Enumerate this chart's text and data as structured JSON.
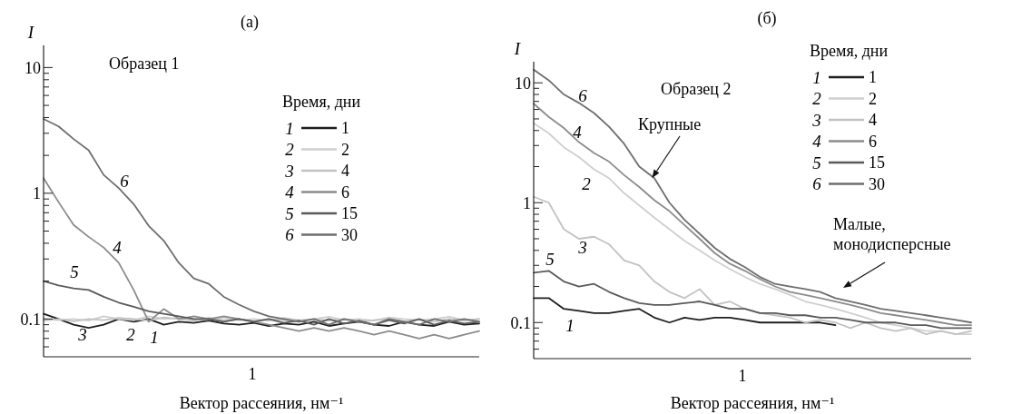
{
  "chart_data": [
    {
      "type": "line",
      "title": "(a)",
      "xlabel": "Вектор рассеяния, нм⁻¹",
      "ylabel": "I",
      "legend_title": "Время, дни",
      "log": "y",
      "legend": "top right",
      "ylim": [
        0.05,
        15
      ],
      "yticks": [
        {
          "value": 0.06,
          "label": null
        },
        {
          "value": 0.07,
          "label": null
        },
        {
          "value": 0.08,
          "label": null
        },
        {
          "value": 0.09,
          "label": null
        },
        {
          "value": 0.1,
          "label": "0.1"
        },
        {
          "value": 0.2,
          "label": null
        },
        {
          "value": 0.3,
          "label": null
        },
        {
          "value": 0.4,
          "label": null
        },
        {
          "value": 0.5,
          "label": null
        },
        {
          "value": 0.6,
          "label": null
        },
        {
          "value": 0.7,
          "label": null
        },
        {
          "value": 0.8,
          "label": null
        },
        {
          "value": 0.9,
          "label": null
        },
        {
          "value": 1,
          "label": "1"
        },
        {
          "value": 2,
          "label": null
        },
        {
          "value": 3,
          "label": null
        },
        {
          "value": 4,
          "label": null
        },
        {
          "value": 5,
          "label": null
        },
        {
          "value": 6,
          "label": null
        },
        {
          "value": 7,
          "label": null
        },
        {
          "value": 8,
          "label": null
        },
        {
          "value": 9,
          "label": null
        },
        {
          "value": 10,
          "label": "10"
        }
      ],
      "categories": [
        null,
        null,
        null,
        null,
        null,
        null,
        null,
        null,
        null,
        null,
        null,
        null,
        null,
        null,
        null,
        null,
        null,
        null,
        null,
        null,
        null,
        null,
        null,
        null,
        null,
        null,
        null,
        null,
        null,
        null
      ],
      "series": [
        {
          "name": "1",
          "color": "#1e1e1e",
          "values": [
            0.11,
            0.1,
            0.09,
            0.085,
            0.09,
            0.1,
            0.095,
            0.1,
            0.09,
            0.095,
            0.093,
            0.097,
            0.092,
            0.09,
            0.093,
            0.088,
            0.092,
            0.09,
            0.095,
            0.088,
            0.092,
            0.095,
            0.09,
            0.088,
            0.095,
            0.09,
            0.088,
            0.095,
            0.09,
            0.092
          ]
        },
        {
          "name": "2",
          "color": "#cfcfcf",
          "values": [
            0.1,
            0.098,
            0.1,
            0.097,
            0.105,
            0.1,
            0.098,
            0.105,
            0.1,
            0.102,
            0.098,
            0.1,
            0.103,
            0.098,
            0.1,
            0.097,
            0.102,
            0.098,
            0.1,
            0.104,
            0.098,
            0.1,
            0.097,
            0.103,
            0.1,
            0.098,
            0.1,
            0.104,
            0.098,
            0.1
          ]
        },
        {
          "name": "4",
          "color": "#c2c2c2",
          "values": [
            0.097,
            0.1,
            0.096,
            0.1,
            0.098,
            0.102,
            0.1,
            0.097,
            0.103,
            0.1,
            0.097,
            0.102,
            0.098,
            0.1,
            0.096,
            0.1,
            0.098,
            0.095,
            0.1,
            0.097,
            0.1,
            0.095,
            0.098,
            0.1,
            0.096,
            0.099,
            0.095,
            0.1,
            0.097,
            0.1
          ]
        },
        {
          "name": "6",
          "color": "#8c8c8c",
          "values": [
            1.32,
            0.85,
            0.56,
            0.45,
            0.37,
            0.28,
            0.17,
            0.095,
            0.12,
            0.1,
            0.105,
            0.1,
            0.105,
            0.1,
            0.095,
            0.09,
            0.085,
            0.08,
            0.085,
            0.08,
            0.085,
            0.08,
            0.075,
            0.08,
            0.075,
            0.07,
            0.075,
            0.07,
            0.075,
            0.08
          ]
        },
        {
          "name": "15",
          "color": "#5a5a5a",
          "values": [
            0.2,
            0.185,
            0.175,
            0.17,
            0.15,
            0.135,
            0.125,
            0.115,
            0.11,
            0.105,
            0.1,
            0.1,
            0.095,
            0.1,
            0.095,
            0.1,
            0.093,
            0.097,
            0.09,
            0.1,
            0.092,
            0.097,
            0.09,
            0.098,
            0.092,
            0.1,
            0.09,
            0.097,
            0.092,
            0.095
          ]
        },
        {
          "name": "30",
          "color": "#6e6e6e",
          "values": [
            3.9,
            3.4,
            2.7,
            2.2,
            1.4,
            1.1,
            0.82,
            0.55,
            0.42,
            0.28,
            0.21,
            0.19,
            0.15,
            0.13,
            0.115,
            0.105,
            0.1,
            0.095,
            0.1,
            0.09,
            0.1,
            0.095,
            0.09,
            0.1,
            0.095,
            0.09,
            0.1,
            0.095,
            0.1,
            0.095
          ]
        }
      ],
      "annotations": [
        "Образец 1",
        "1",
        "6",
        "4",
        "5",
        "3",
        "2",
        "1"
      ]
    },
    {
      "type": "line",
      "title": "(б)",
      "xlabel": "Вектор рассеяния, нм⁻¹",
      "ylabel": "I",
      "legend_title": "Время, дни",
      "log": "y",
      "legend": "top right",
      "ylim": [
        0.05,
        15
      ],
      "yticks": [
        {
          "value": 0.06,
          "label": null
        },
        {
          "value": 0.07,
          "label": null
        },
        {
          "value": 0.08,
          "label": null
        },
        {
          "value": 0.09,
          "label": null
        },
        {
          "value": 0.1,
          "label": "0.1"
        },
        {
          "value": 0.2,
          "label": null
        },
        {
          "value": 0.3,
          "label": null
        },
        {
          "value": 0.4,
          "label": null
        },
        {
          "value": 0.5,
          "label": null
        },
        {
          "value": 0.6,
          "label": null
        },
        {
          "value": 0.7,
          "label": null
        },
        {
          "value": 0.8,
          "label": null
        },
        {
          "value": 0.9,
          "label": null
        },
        {
          "value": 1,
          "label": "1"
        },
        {
          "value": 2,
          "label": null
        },
        {
          "value": 3,
          "label": null
        },
        {
          "value": 4,
          "label": null
        },
        {
          "value": 5,
          "label": null
        },
        {
          "value": 6,
          "label": null
        },
        {
          "value": 7,
          "label": null
        },
        {
          "value": 8,
          "label": null
        },
        {
          "value": 9,
          "label": null
        },
        {
          "value": 10,
          "label": "10"
        }
      ],
      "categories": [
        null,
        null,
        null,
        null,
        null,
        null,
        null,
        null,
        null,
        null,
        null,
        null,
        null,
        null,
        null,
        null,
        null,
        null,
        null,
        null,
        null,
        null,
        null,
        null,
        null,
        null,
        null,
        null,
        null,
        null
      ],
      "series": [
        {
          "name": "1",
          "color": "#1e1e1e",
          "values": [
            0.16,
            0.16,
            0.13,
            0.125,
            0.12,
            0.12,
            0.125,
            0.13,
            0.11,
            0.1,
            0.11,
            0.105,
            0.11,
            0.11,
            0.105,
            0.1,
            0.1,
            0.1,
            0.1,
            0.1,
            0.095,
            null,
            null,
            null,
            null,
            null,
            null,
            null,
            null,
            null
          ]
        },
        {
          "name": "2",
          "color": "#cfcfcf",
          "values": [
            4.6,
            3.8,
            2.9,
            2.4,
            1.9,
            1.6,
            1.2,
            0.95,
            0.75,
            0.6,
            0.48,
            0.4,
            0.33,
            0.28,
            0.24,
            0.21,
            0.19,
            0.17,
            0.15,
            0.14,
            0.13,
            0.12,
            0.11,
            0.1,
            0.095,
            0.09,
            0.085,
            0.085,
            0.08,
            0.08
          ]
        },
        {
          "name": "4",
          "color": "#c2c2c2",
          "values": [
            1.12,
            1.0,
            0.6,
            0.5,
            0.52,
            0.45,
            0.33,
            0.3,
            0.22,
            0.18,
            0.16,
            0.19,
            0.14,
            0.15,
            0.13,
            0.12,
            0.115,
            0.11,
            0.1,
            0.105,
            0.1,
            0.09,
            0.1,
            0.09,
            0.085,
            0.09,
            0.08,
            0.085,
            0.08,
            0.085
          ]
        },
        {
          "name": "6",
          "color": "#8c8c8c",
          "values": [
            6.7,
            5.2,
            4.2,
            3.2,
            2.6,
            2.2,
            1.7,
            1.35,
            1.05,
            0.85,
            0.65,
            0.5,
            0.38,
            0.31,
            0.27,
            0.23,
            0.2,
            0.18,
            0.17,
            0.16,
            0.15,
            0.14,
            0.13,
            0.12,
            0.115,
            0.11,
            0.105,
            0.1,
            0.095,
            0.095
          ]
        },
        {
          "name": "15",
          "color": "#5a5a5a",
          "values": [
            0.26,
            0.27,
            0.22,
            0.2,
            0.21,
            0.18,
            0.16,
            0.145,
            0.14,
            0.14,
            0.145,
            0.15,
            0.14,
            0.13,
            0.13,
            0.12,
            0.12,
            0.115,
            0.115,
            0.11,
            0.11,
            0.105,
            0.1,
            0.1,
            0.1,
            0.095,
            0.095,
            0.09,
            0.09,
            0.09
          ]
        },
        {
          "name": "30",
          "color": "#6e6e6e",
          "values": [
            12.9,
            10.5,
            8.0,
            6.8,
            5.6,
            4.3,
            3.1,
            2.0,
            1.6,
            1.0,
            0.72,
            0.55,
            0.42,
            0.34,
            0.29,
            0.24,
            0.21,
            0.2,
            0.19,
            0.18,
            0.16,
            0.15,
            0.14,
            0.13,
            0.125,
            0.12,
            0.115,
            0.11,
            0.105,
            0.1
          ]
        }
      ],
      "annotations": [
        "Образец 2",
        "1",
        "Крупные",
        "Малые,\nмонодисперсные",
        "6",
        "4",
        "2",
        "3",
        "5",
        "1"
      ]
    }
  ]
}
